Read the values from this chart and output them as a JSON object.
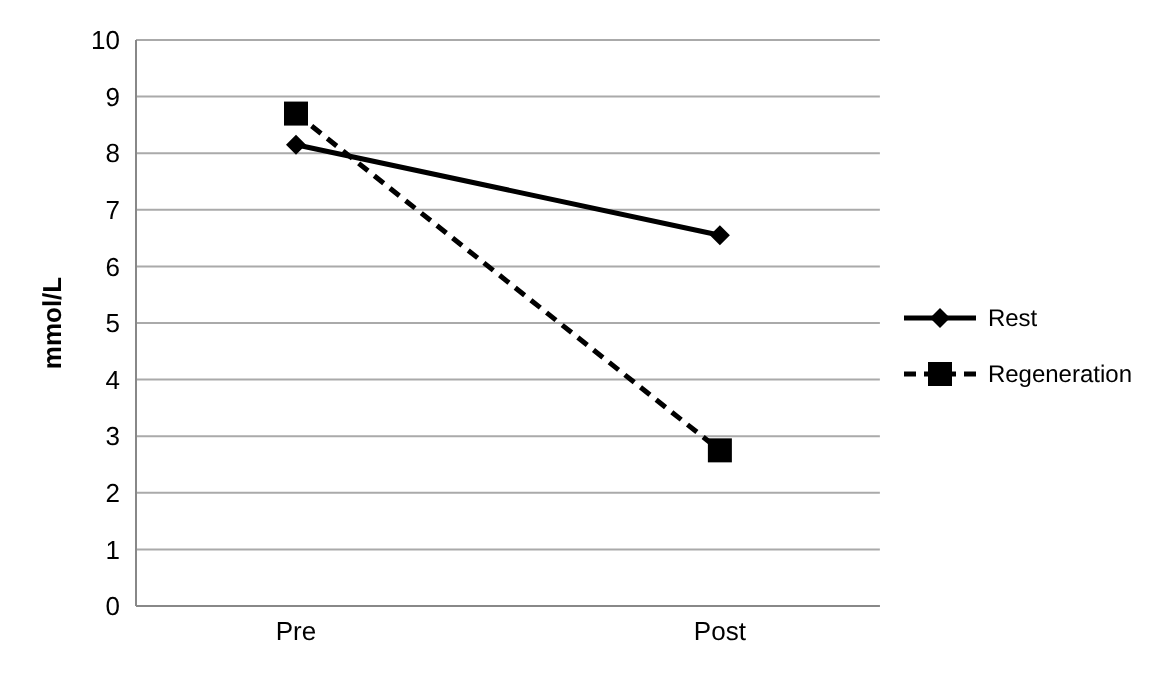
{
  "chart_data": {
    "type": "line",
    "ylabel": "mmol/L",
    "categories": [
      "Pre",
      "Post"
    ],
    "series": [
      {
        "name": "Rest",
        "color": "#000000",
        "values": [
          8.15,
          6.55
        ],
        "marker": "diamond",
        "line_style": "solid"
      },
      {
        "name": "Regeneration",
        "color": "#000000",
        "values": [
          8.7,
          2.75
        ],
        "marker": "square",
        "line_style": "dashed"
      }
    ],
    "ylim": [
      0,
      10
    ],
    "yticks": [
      0,
      1,
      2,
      3,
      4,
      5,
      6,
      7,
      8,
      9,
      10
    ],
    "grid": "y",
    "legend": "right"
  }
}
